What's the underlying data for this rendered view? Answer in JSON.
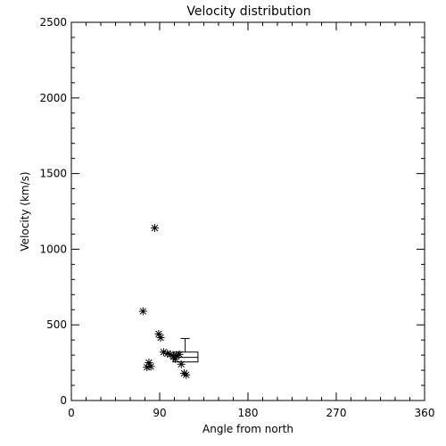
{
  "chart_data": {
    "type": "scatter",
    "title": "Velocity distribution",
    "xlabel": "Angle from north",
    "ylabel": "Velocity (km/s)",
    "xlim": [
      0,
      360
    ],
    "ylim": [
      0,
      2500
    ],
    "xticks": [
      "0",
      "90",
      "180",
      "270",
      "360"
    ],
    "yticks": [
      "0",
      "500",
      "1000",
      "1500",
      "2000",
      "2500"
    ],
    "grid": false,
    "marker": "asterisk",
    "points": [
      {
        "x": 73,
        "y": 590
      },
      {
        "x": 85,
        "y": 1140
      },
      {
        "x": 89,
        "y": 440
      },
      {
        "x": 91,
        "y": 415
      },
      {
        "x": 79,
        "y": 250
      },
      {
        "x": 77,
        "y": 220
      },
      {
        "x": 81,
        "y": 225
      },
      {
        "x": 94,
        "y": 320
      },
      {
        "x": 98,
        "y": 310
      },
      {
        "x": 101,
        "y": 305
      },
      {
        "x": 104,
        "y": 290
      },
      {
        "x": 107,
        "y": 300
      },
      {
        "x": 110,
        "y": 305
      },
      {
        "x": 106,
        "y": 275
      },
      {
        "x": 112,
        "y": 240
      },
      {
        "x": 115,
        "y": 180
      },
      {
        "x": 117,
        "y": 170
      }
    ],
    "boxplot": {
      "x_min": 104,
      "x_max": 129,
      "whisker_x": 116,
      "q1": 255,
      "median": 285,
      "q3": 320,
      "whisker_high": 410
    }
  }
}
